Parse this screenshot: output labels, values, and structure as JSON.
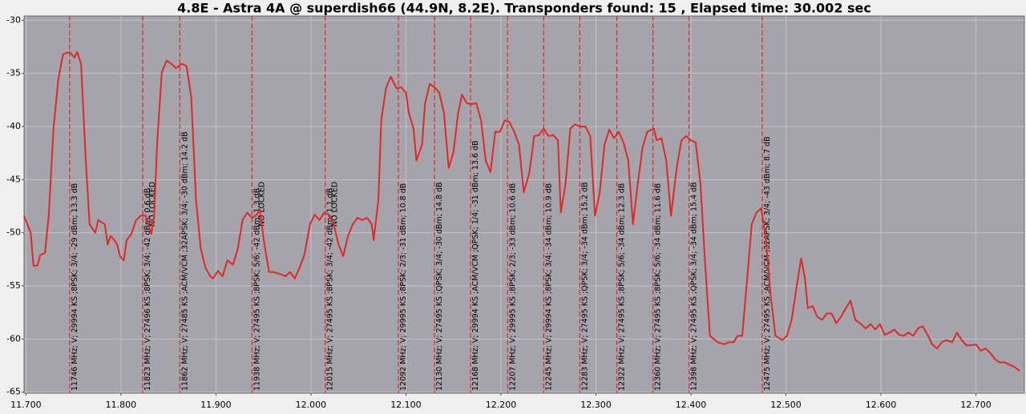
{
  "chart_data": {
    "type": "line",
    "title": "4.8E - Astra 4A @ superdish66 (44.9N, 8.2E). Transponders found: 15 , Elapsed time: 30.002 sec",
    "x": [
      11.698,
      11.705,
      11.708,
      11.712,
      11.715,
      11.72,
      11.724,
      11.729,
      11.734,
      11.739,
      11.746,
      11.751,
      11.754,
      11.758,
      11.763,
      11.767,
      11.773,
      11.776,
      11.783,
      11.786,
      11.789,
      11.793,
      11.796,
      11.799,
      11.803,
      11.806,
      11.811,
      11.816,
      11.821,
      11.826,
      11.832,
      11.835,
      11.838,
      11.843,
      11.848,
      11.853,
      11.858,
      11.864,
      11.869,
      11.874,
      11.879,
      11.884,
      11.889,
      11.894,
      11.897,
      11.902,
      11.907,
      11.912,
      11.918,
      11.923,
      11.928,
      11.933,
      11.938,
      11.943,
      11.946,
      11.951,
      11.956,
      11.961,
      11.968,
      11.973,
      11.978,
      11.983,
      11.988,
      11.993,
      11.999,
      12.004,
      12.009,
      12.014,
      12.019,
      12.024,
      12.029,
      12.034,
      12.039,
      12.044,
      12.049,
      12.054,
      12.059,
      12.064,
      12.066,
      12.071,
      12.074,
      12.079,
      12.084,
      12.09,
      12.095,
      12.1,
      12.103,
      12.108,
      12.111,
      12.117,
      12.12,
      12.125,
      12.13,
      12.135,
      12.14,
      12.145,
      12.15,
      12.155,
      12.159,
      12.164,
      12.169,
      12.174,
      12.179,
      12.184,
      12.189,
      12.194,
      12.199,
      12.204,
      12.209,
      12.214,
      12.219,
      12.224,
      12.23,
      12.235,
      12.24,
      12.245,
      12.25,
      12.255,
      12.26,
      12.263,
      12.268,
      12.273,
      12.278,
      12.283,
      12.289,
      12.294,
      12.299,
      12.304,
      12.309,
      12.314,
      12.319,
      12.324,
      12.329,
      12.334,
      12.339,
      12.344,
      12.349,
      12.354,
      12.361,
      12.364,
      12.369,
      12.374,
      12.379,
      12.385,
      12.39,
      12.395,
      12.4,
      12.405,
      12.41,
      12.415,
      12.42,
      12.428,
      12.435,
      12.44,
      12.445,
      12.449,
      12.454,
      12.459,
      12.464,
      12.469,
      12.474,
      12.479,
      12.484,
      12.489,
      12.496,
      12.501,
      12.506,
      12.511,
      12.516,
      12.52,
      12.523,
      12.528,
      12.533,
      12.538,
      12.543,
      12.548,
      12.553,
      12.558,
      12.563,
      12.568,
      12.573,
      12.579,
      12.584,
      12.589,
      12.594,
      12.599,
      12.604,
      12.609,
      12.614,
      12.619,
      12.624,
      12.629,
      12.634,
      12.639,
      12.644,
      12.649,
      12.654,
      12.659,
      12.664,
      12.669,
      12.675,
      12.68,
      12.685,
      12.69,
      12.695,
      12.7,
      12.705,
      12.71,
      12.715,
      12.72,
      12.725,
      12.73,
      12.735,
      12.74,
      12.746
    ],
    "series": [
      {
        "color": "#e02828",
        "values": [
          -48.4,
          -50.0,
          -53.1,
          -53.1,
          -52.1,
          -51.9,
          -48.4,
          -40.2,
          -35.6,
          -33.2,
          -33.0,
          -33.5,
          -33.0,
          -34.1,
          -43.2,
          -49.2,
          -50.0,
          -48.8,
          -49.2,
          -51.1,
          -50.3,
          -50.7,
          -51.1,
          -52.2,
          -52.6,
          -50.7,
          -50.1,
          -48.8,
          -48.4,
          -48.4,
          -50.1,
          -48.4,
          -41.7,
          -34.9,
          -33.8,
          -34.1,
          -34.5,
          -34.1,
          -34.3,
          -37.2,
          -46.9,
          -51.5,
          -53.3,
          -54.1,
          -54.3,
          -53.6,
          -54.1,
          -52.6,
          -53.0,
          -51.5,
          -48.8,
          -48.1,
          -48.6,
          -48.3,
          -47.8,
          -51.1,
          -53.7,
          -53.7,
          -53.9,
          -54.1,
          -53.7,
          -54.3,
          -53.3,
          -52.1,
          -49.2,
          -48.3,
          -48.8,
          -48.1,
          -48.3,
          -49.2,
          -51.1,
          -52.2,
          -50.3,
          -49.2,
          -48.6,
          -48.8,
          -48.6,
          -49.2,
          -50.7,
          -46.9,
          -39.4,
          -36.4,
          -35.3,
          -36.4,
          -36.3,
          -36.8,
          -38.7,
          -40.2,
          -43.2,
          -41.7,
          -37.9,
          -36.0,
          -36.3,
          -36.8,
          -38.7,
          -43.9,
          -42.4,
          -38.7,
          -37.0,
          -37.8,
          -37.9,
          -37.8,
          -39.4,
          -43.2,
          -44.3,
          -40.5,
          -40.5,
          -39.4,
          -39.6,
          -40.5,
          -41.7,
          -46.2,
          -44.3,
          -40.9,
          -40.8,
          -40.2,
          -40.9,
          -40.8,
          -41.3,
          -48.1,
          -45.4,
          -40.2,
          -39.8,
          -40.0,
          -40.0,
          -40.9,
          -48.4,
          -46.2,
          -41.7,
          -40.3,
          -41.1,
          -40.5,
          -41.5,
          -43.2,
          -49.2,
          -45.4,
          -42.0,
          -40.5,
          -40.2,
          -41.3,
          -41.1,
          -43.2,
          -48.4,
          -43.9,
          -41.3,
          -40.9,
          -41.3,
          -41.5,
          -45.4,
          -53.0,
          -59.7,
          -60.3,
          -60.5,
          -60.3,
          -60.3,
          -59.7,
          -59.7,
          -54.5,
          -49.2,
          -48.1,
          -47.7,
          -50.7,
          -56.0,
          -59.7,
          -60.1,
          -59.7,
          -58.2,
          -55.2,
          -52.4,
          -54.3,
          -57.1,
          -56.9,
          -57.9,
          -58.2,
          -57.6,
          -57.6,
          -58.5,
          -57.9,
          -57.1,
          -56.4,
          -58.2,
          -58.6,
          -59.0,
          -58.6,
          -59.1,
          -58.6,
          -59.6,
          -59.4,
          -59.1,
          -59.6,
          -59.7,
          -59.4,
          -59.7,
          -59.0,
          -58.8,
          -59.6,
          -60.5,
          -60.9,
          -60.3,
          -60.1,
          -60.3,
          -59.4,
          -60.1,
          -60.6,
          -60.6,
          -60.5,
          -61.1,
          -60.9,
          -61.3,
          -61.9,
          -62.2,
          -62.2,
          -62.4,
          -62.6,
          -63.0
        ]
      }
    ],
    "xlim": [
      11.698,
      12.751
    ],
    "ylim": [
      -65.1,
      -29.6
    ],
    "xticks": [
      {
        "value": 11.7,
        "label": "11.700"
      },
      {
        "value": 11.8,
        "label": "11.800"
      },
      {
        "value": 11.9,
        "label": "11.900"
      },
      {
        "value": 12.0,
        "label": "12.000"
      },
      {
        "value": 12.1,
        "label": "12.100"
      },
      {
        "value": 12.2,
        "label": "12.200"
      },
      {
        "value": 12.3,
        "label": "12.300"
      },
      {
        "value": 12.4,
        "label": "12.400"
      },
      {
        "value": 12.5,
        "label": "12.500"
      },
      {
        "value": 12.6,
        "label": "12.600"
      },
      {
        "value": 12.7,
        "label": "12.700"
      }
    ],
    "yticks": [
      -30,
      -35,
      -40,
      -45,
      -50,
      -55,
      -60,
      -65
    ],
    "grid": true,
    "marker_color": "#e02828",
    "transponders": [
      {
        "freq": 11.746,
        "label": "11746 MHz; V; 29994 KS ;8PSK; 3/4; -29 dBm; 13.3 dB"
      },
      {
        "freq": 11.823,
        "label": "11823 MHz; V; 27496 KS ;8PSK; 3/4; -42 dBm; 0.6 dB",
        "status": "NO LOCKED"
      },
      {
        "freq": 11.862,
        "label": "11862 MHz; V; 27485 KS ;ACM/VCM ;32APSK; 3/4; -30 dBm; 14.2 dB"
      },
      {
        "freq": 11.938,
        "label": "11938 MHz; V; 27495 KS ;8PSK; 5/6; -42 dBm; 1.3 dB",
        "status": "NO LOCKED"
      },
      {
        "freq": 12.015,
        "label": "12015 MHz; V; 27495 KS ;8PSK; 3/4; -42 dBm; 1.1 dB",
        "status": "NO LOCKED"
      },
      {
        "freq": 12.092,
        "label": "12092 MHz; V; 29995 KS ;8PSK; 2/3; -31 dBm; 10.8 dB"
      },
      {
        "freq": 12.13,
        "label": "12130 MHz; V; 27495 KS ;QPSK; 3/4; -30 dBm; 14.8 dB"
      },
      {
        "freq": 12.168,
        "label": "12168 MHz; V; 29994 KS ;ACM/VCM ;QPSK; 1/4; -31 dBm; 13.6 dB"
      },
      {
        "freq": 12.207,
        "label": "12207 MHz; V; 29995 KS ;8PSK; 2/3; -33 dBm; 10.6 dB"
      },
      {
        "freq": 12.245,
        "label": "12245 MHz; V; 29994 KS ;8PSK; 3/4; -34 dBm; 10.9 dB"
      },
      {
        "freq": 12.283,
        "label": "12283 MHz; V; 27495 KS ;QPSK; 3/4; -34 dBm; 15.2 dB"
      },
      {
        "freq": 12.322,
        "label": "12322 MHz; V; 27495 KS ;8PSK; 5/6; -34 dBm; 12.3 dB"
      },
      {
        "freq": 12.36,
        "label": "12360 MHz; V; 27495 KS ;8PSK; 5/6; -34 dBm; 11.6 dB"
      },
      {
        "freq": 12.398,
        "label": "12398 MHz; V; 27495 KS ;QPSK; 3/4; -34 dBm; 15.4 dB"
      },
      {
        "freq": 12.475,
        "label": "12475 MHz; V; 27495 KS ;ACM/VCM ;32APSK; 3/4; -43 dBm; 8.7 dB"
      }
    ]
  }
}
